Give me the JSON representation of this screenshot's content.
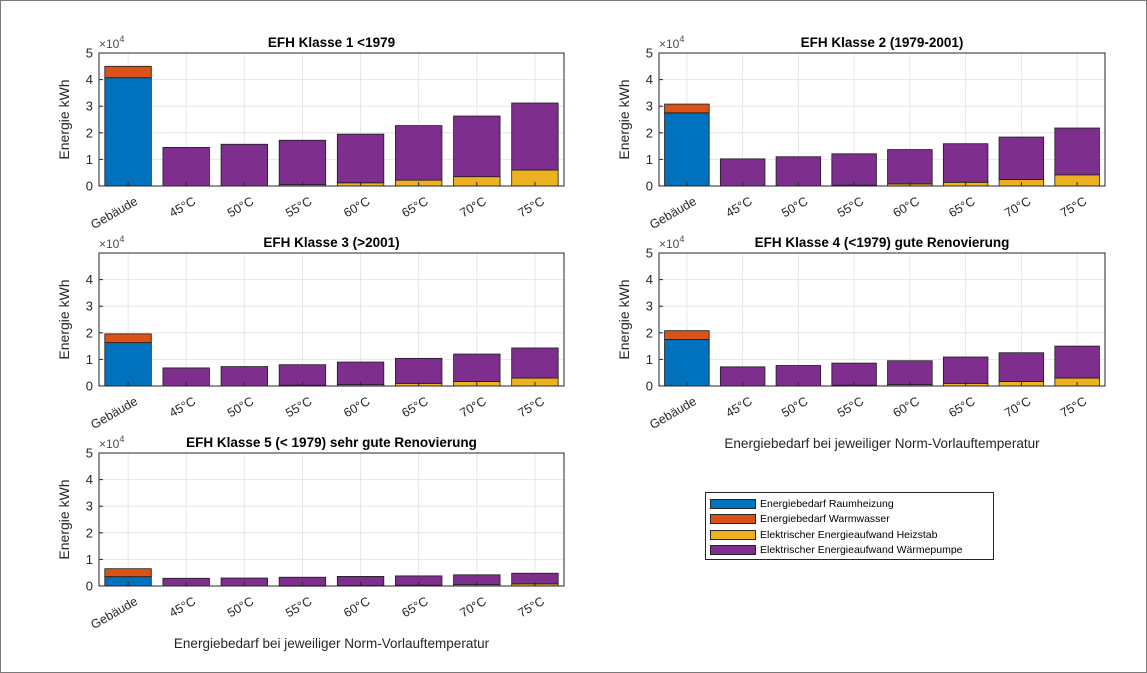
{
  "chart_data": [
    {
      "type": "bar",
      "stacked": true,
      "title": "EFH Klasse 1 <1979",
      "ylabel": "Energie kWh",
      "xlabel": "",
      "yexponent_label": "×10",
      "yexponent_power": "4",
      "ylim": [
        0,
        5
      ],
      "yticks": [
        "0",
        "1",
        "2",
        "3",
        "4",
        "5"
      ],
      "categories": [
        "Gebäude",
        "45°C",
        "50°C",
        "55°C",
        "60°C",
        "65°C",
        "70°C",
        "75°C"
      ],
      "series": [
        {
          "name": "Energiebedarf Raumheizung",
          "values": [
            4.07,
            0,
            0,
            0,
            0,
            0,
            0,
            0
          ]
        },
        {
          "name": "Energiebedarf Warmwasser",
          "values": [
            0.43,
            0,
            0,
            0,
            0,
            0,
            0,
            0
          ]
        },
        {
          "name": "Elektrischer Energieaufwand Heizstab",
          "values": [
            0,
            0,
            0,
            0.05,
            0.12,
            0.22,
            0.35,
            0.6
          ]
        },
        {
          "name": "Elektrischer Energieaufwand Wärmepumpe",
          "values": [
            0,
            1.45,
            1.57,
            1.67,
            1.83,
            2.05,
            2.28,
            2.52
          ]
        }
      ]
    },
    {
      "type": "bar",
      "stacked": true,
      "title": "EFH Klasse 2 (1979-2001)",
      "ylabel": "Energie kWh",
      "xlabel": "Energiebedarf bei jeweiliger Norm-Vorlauftemperatur",
      "yexponent_label": "×10",
      "yexponent_power": "4",
      "ylim": [
        0,
        5
      ],
      "yticks": [
        "0",
        "1",
        "2",
        "3",
        "4",
        "5"
      ],
      "categories": [
        "Gebäude",
        "45°C",
        "50°C",
        "55°C",
        "60°C",
        "65°C",
        "70°C",
        "75°C"
      ],
      "series": [
        {
          "name": "Energiebedarf Raumheizung",
          "values": [
            2.75,
            0,
            0,
            0,
            0,
            0,
            0,
            0
          ]
        },
        {
          "name": "Energiebedarf Warmwasser",
          "values": [
            0.33,
            0,
            0,
            0,
            0,
            0,
            0,
            0
          ]
        },
        {
          "name": "Elektrischer Energieaufwand Heizstab",
          "values": [
            0,
            0,
            0,
            0.03,
            0.08,
            0.14,
            0.24,
            0.42
          ]
        },
        {
          "name": "Elektrischer Energieaufwand Wärmepumpe",
          "values": [
            0,
            1.02,
            1.1,
            1.18,
            1.29,
            1.45,
            1.6,
            1.76
          ]
        }
      ]
    },
    {
      "type": "bar",
      "stacked": true,
      "title": "EFH Klasse 3 (>2001)",
      "ylabel": "Energie kWh",
      "xlabel": "",
      "yexponent_label": "×10",
      "yexponent_power": "4",
      "ylim": [
        0,
        5
      ],
      "yticks": [
        "0",
        "1",
        "2",
        "3",
        "4",
        ""
      ],
      "categories": [
        "Gebäude",
        "45°C",
        "50°C",
        "55°C",
        "60°C",
        "65°C",
        "70°C",
        "75°C"
      ],
      "series": [
        {
          "name": "Energiebedarf Raumheizung",
          "values": [
            1.63,
            0,
            0,
            0,
            0,
            0,
            0,
            0
          ]
        },
        {
          "name": "Energiebedarf Warmwasser",
          "values": [
            0.33,
            0,
            0,
            0,
            0,
            0,
            0,
            0
          ]
        },
        {
          "name": "Elektrischer Energieaufwand Heizstab",
          "values": [
            0,
            0,
            0,
            0.03,
            0.05,
            0.1,
            0.17,
            0.3
          ]
        },
        {
          "name": "Elektrischer Energieaufwand Wärmepumpe",
          "values": [
            0,
            0.68,
            0.73,
            0.77,
            0.85,
            0.94,
            1.03,
            1.13
          ]
        }
      ]
    },
    {
      "type": "bar",
      "stacked": true,
      "title": "EFH Klasse 4 (<1979) gute Renovierung",
      "ylabel": "Energie kWh",
      "xlabel": "",
      "yexponent_label": "×10",
      "yexponent_power": "4",
      "ylim": [
        0,
        5
      ],
      "yticks": [
        "0",
        "1",
        "2",
        "3",
        "4",
        "5"
      ],
      "categories": [
        "Gebäude",
        "45°C",
        "50°C",
        "55°C",
        "60°C",
        "65°C",
        "70°C",
        "75°C"
      ],
      "series": [
        {
          "name": "Energiebedarf Raumheizung",
          "values": [
            1.75,
            0,
            0,
            0,
            0,
            0,
            0,
            0
          ]
        },
        {
          "name": "Energiebedarf Warmwasser",
          "values": [
            0.33,
            0,
            0,
            0,
            0,
            0,
            0,
            0
          ]
        },
        {
          "name": "Elektrischer Energieaufwand Heizstab",
          "values": [
            0,
            0,
            0,
            0.03,
            0.05,
            0.1,
            0.17,
            0.3
          ]
        },
        {
          "name": "Elektrischer Energieaufwand Wärmepumpe",
          "values": [
            0,
            0.72,
            0.77,
            0.83,
            0.9,
            0.99,
            1.08,
            1.2
          ]
        }
      ]
    },
    {
      "type": "bar",
      "stacked": true,
      "title": "EFH Klasse 5 (< 1979) sehr gute Renovierung",
      "ylabel": "Energie kWh",
      "xlabel": "Energiebedarf bei jeweiliger Norm-Vorlauftemperatur",
      "yexponent_label": "×10",
      "yexponent_power": "4",
      "ylim": [
        0,
        5
      ],
      "yticks": [
        "0",
        "1",
        "2",
        "3",
        "4",
        "5"
      ],
      "categories": [
        "Gebäude",
        "45°C",
        "50°C",
        "55°C",
        "60°C",
        "65°C",
        "70°C",
        "75°C"
      ],
      "series": [
        {
          "name": "Energiebedarf Raumheizung",
          "values": [
            0.35,
            0,
            0,
            0,
            0,
            0,
            0,
            0
          ]
        },
        {
          "name": "Energiebedarf Warmwasser",
          "values": [
            0.3,
            0,
            0,
            0,
            0,
            0,
            0,
            0
          ]
        },
        {
          "name": "Elektrischer Energieaufwand Heizstab",
          "values": [
            0,
            0,
            0,
            0.01,
            0.02,
            0.03,
            0.05,
            0.08
          ]
        },
        {
          "name": "Elektrischer Energieaufwand Wärmepumpe",
          "values": [
            0,
            0.29,
            0.3,
            0.32,
            0.34,
            0.35,
            0.37,
            0.4
          ]
        }
      ]
    }
  ],
  "colors": {
    "raumheizung": "#0072bd",
    "warmwasser": "#d95319",
    "heizstab": "#edb120",
    "waermepumpe": "#7e2f8e"
  },
  "legend": {
    "placement": "lower-right",
    "items": [
      {
        "label": "Energiebedarf Raumheizung",
        "color": "#0072bd"
      },
      {
        "label": "Energiebedarf Warmwasser",
        "color": "#d95319"
      },
      {
        "label": "Elektrischer Energieaufwand Heizstab",
        "color": "#edb120"
      },
      {
        "label": "Elektrischer Energieaufwand Wärmepumpe",
        "color": "#7e2f8e"
      }
    ]
  }
}
